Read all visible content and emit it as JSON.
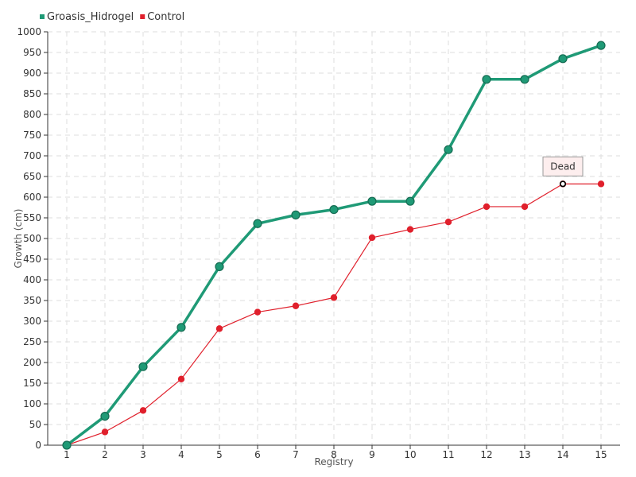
{
  "chart_data": {
    "type": "line",
    "x": [
      "1",
      "2",
      "3",
      "4",
      "5",
      "6",
      "7",
      "8",
      "9",
      "10",
      "11",
      "12",
      "13",
      "14",
      "15"
    ],
    "series": [
      {
        "name": "Groasis_Hidrogel",
        "color": "#1f9a76",
        "values": [
          0,
          70,
          190,
          285,
          432,
          536,
          557,
          570,
          590,
          590,
          715,
          885,
          885,
          935,
          967
        ]
      },
      {
        "name": "Control",
        "color": "#e0202c",
        "values": [
          0,
          32,
          84,
          160,
          282,
          322,
          337,
          357,
          502,
          522,
          540,
          577,
          577,
          632,
          632
        ]
      }
    ],
    "yticks": [
      "0",
      "50",
      "100",
      "150",
      "200",
      "250",
      "300",
      "350",
      "400",
      "450",
      "500",
      "550",
      "600",
      "650",
      "700",
      "750",
      "800",
      "850",
      "900",
      "950",
      "1000"
    ],
    "xlabel": "Registry",
    "ylabel": "Growth (cm)",
    "ylim": [
      0,
      1000
    ],
    "grid": true,
    "legend_position": "top-left",
    "annotation": {
      "text": "Dead",
      "series": "Control",
      "x": "14",
      "y": 632
    }
  }
}
